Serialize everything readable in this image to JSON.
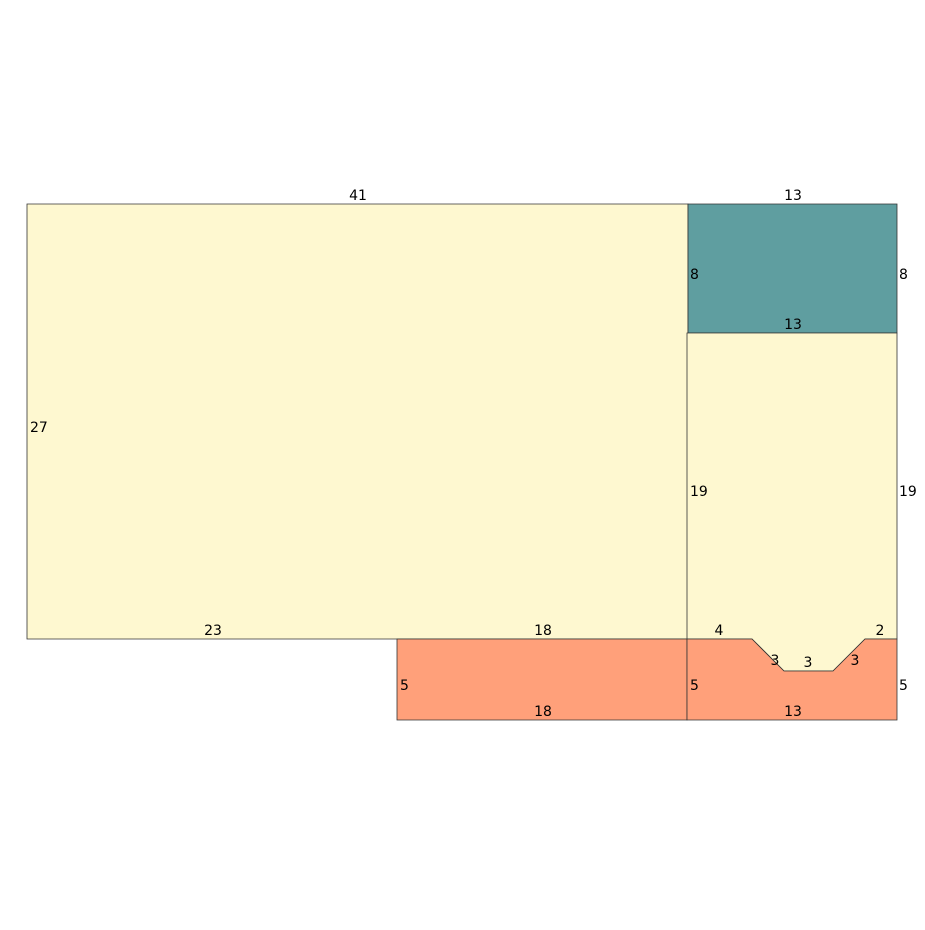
{
  "colors": {
    "yellow": "#fef8d0",
    "teal": "#5f9ea0",
    "orange": "#ffa07a",
    "stroke": "#333333"
  },
  "shapes": [
    {
      "name": "large-yellow-rect",
      "fill": "yellow",
      "labels": [
        "41",
        "27",
        "23",
        "18"
      ]
    },
    {
      "name": "teal-rect",
      "fill": "teal",
      "labels": [
        "13",
        "8",
        "8",
        "13"
      ]
    },
    {
      "name": "right-yellow-notched",
      "fill": "yellow",
      "labels": [
        "19",
        "19",
        "4",
        "2",
        "3",
        "3",
        "3"
      ]
    },
    {
      "name": "left-orange-rect",
      "fill": "orange",
      "labels": [
        "5",
        "18",
        "5"
      ]
    },
    {
      "name": "right-orange-notched",
      "fill": "orange",
      "labels": [
        "13",
        "5"
      ]
    }
  ]
}
